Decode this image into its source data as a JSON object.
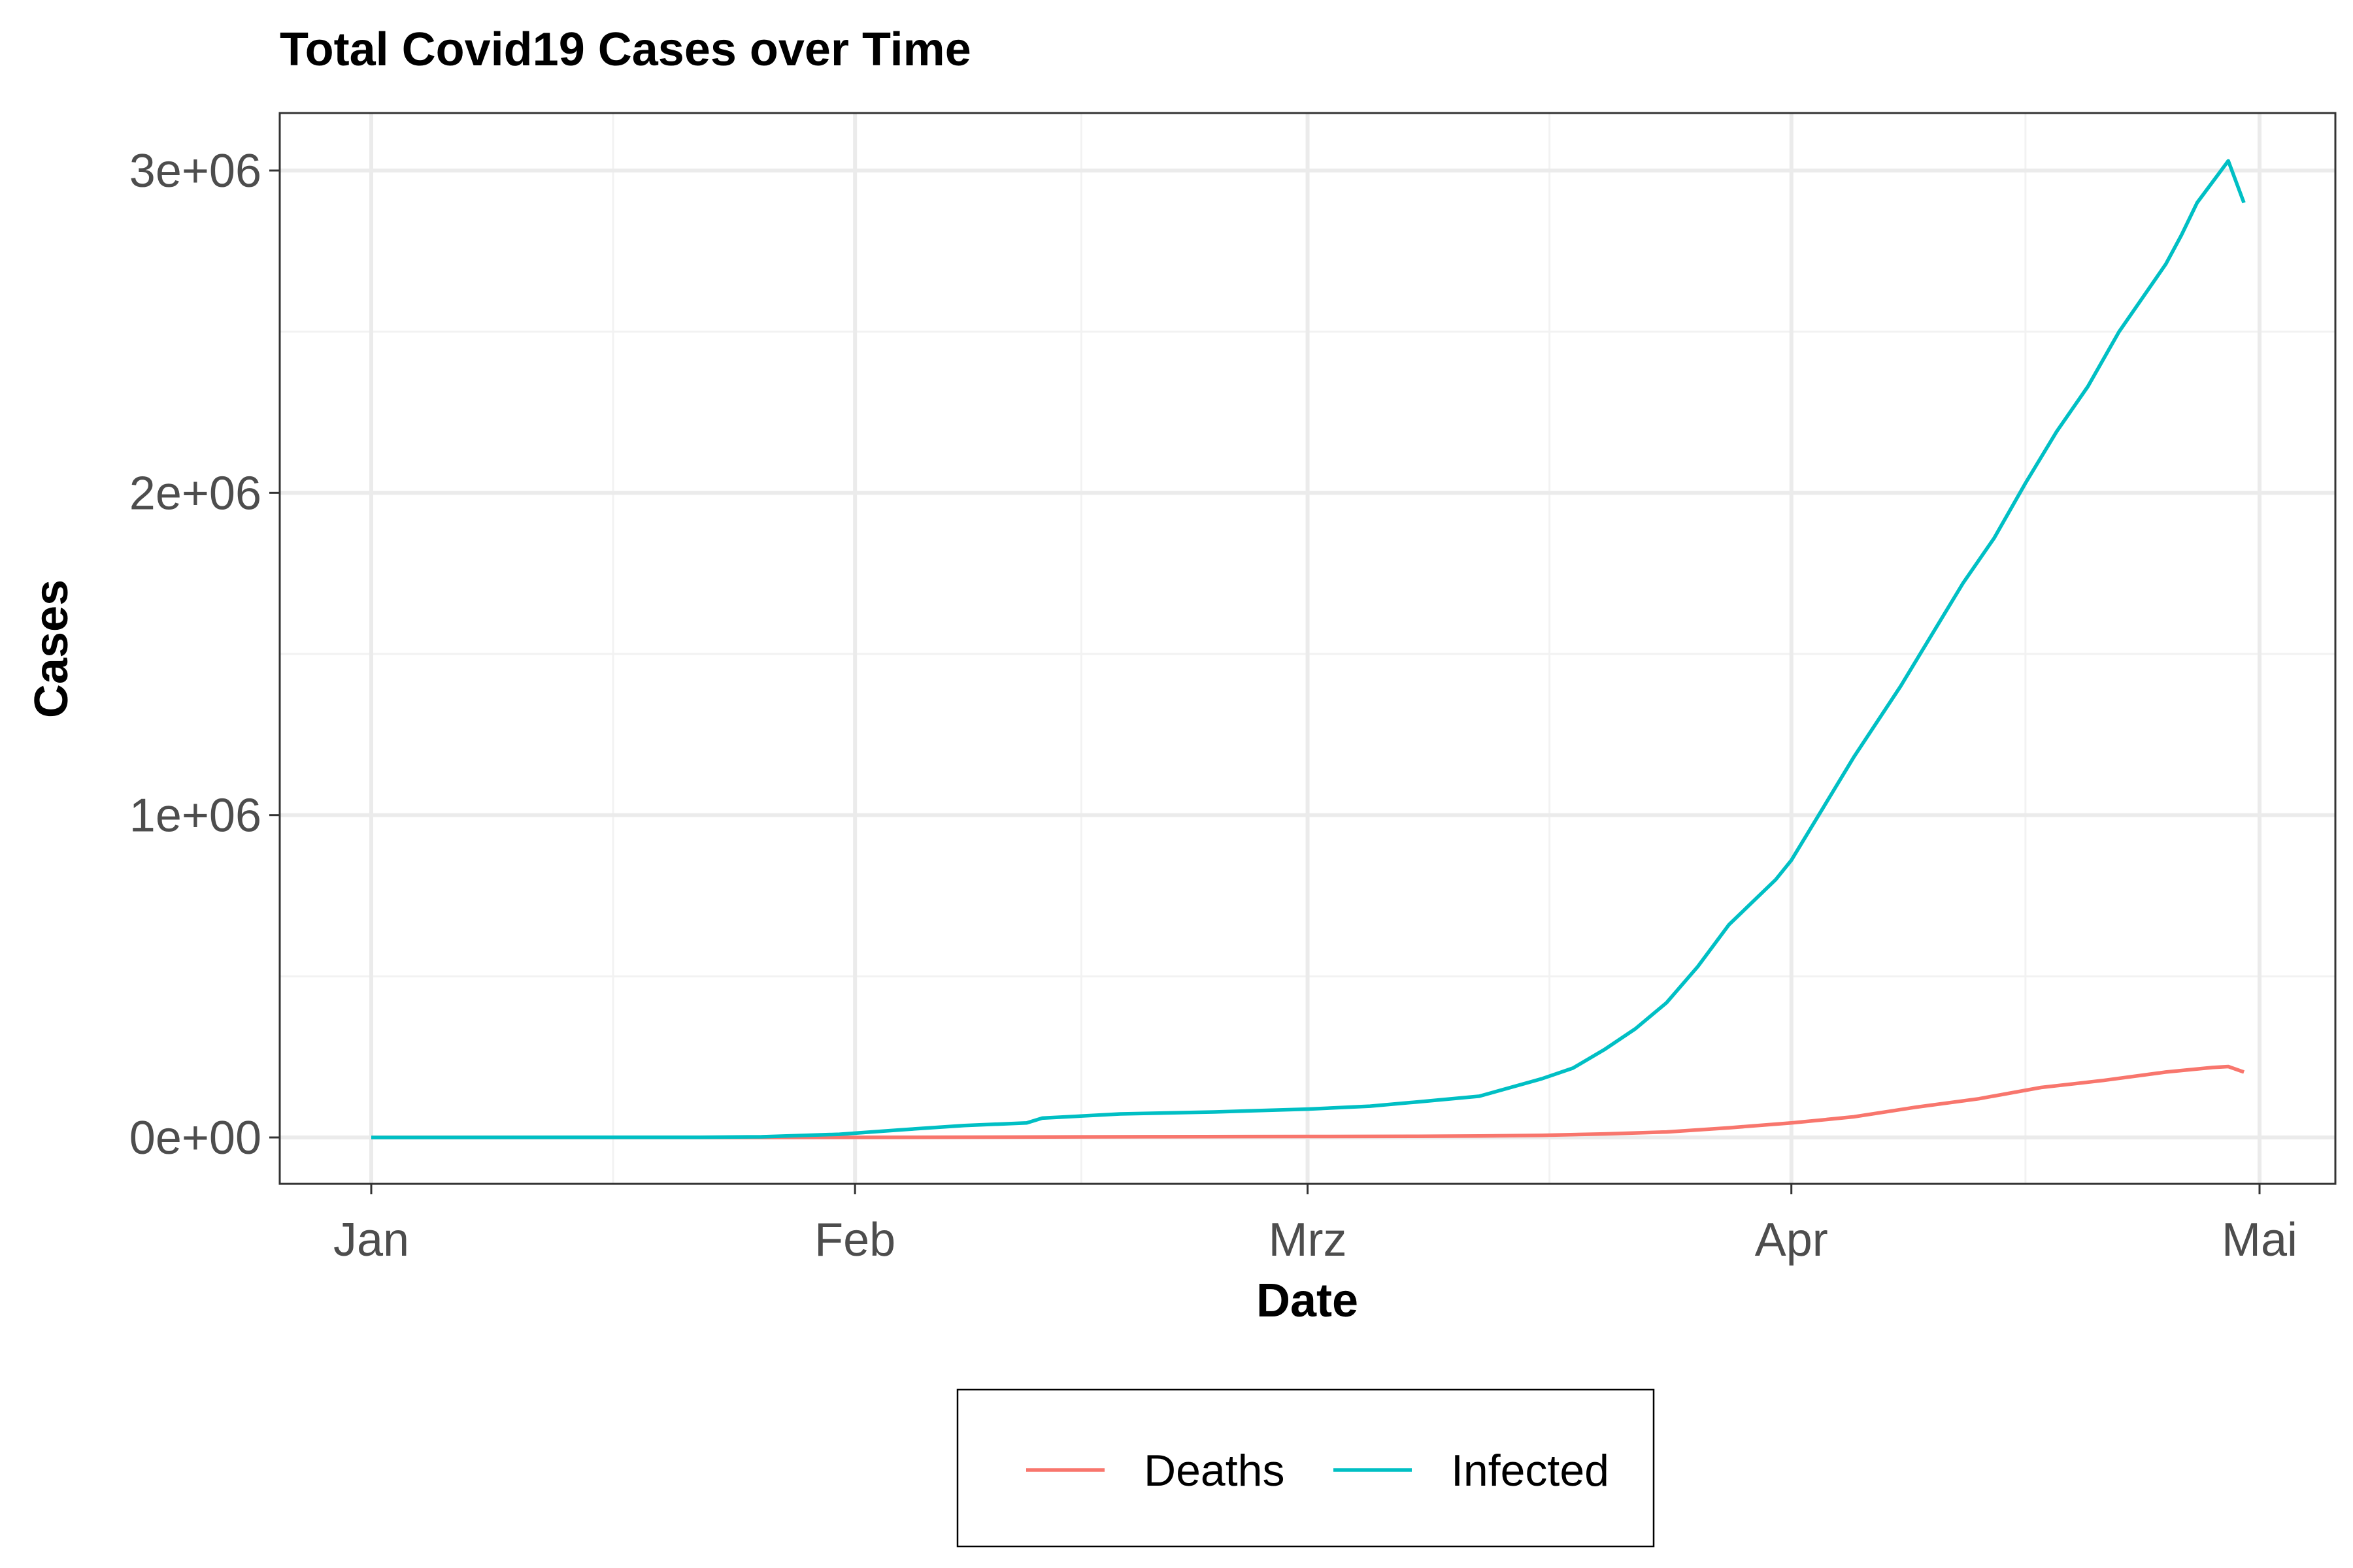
{
  "chart_data": {
    "type": "line",
    "title": "Total Covid19 Cases over Time",
    "xlabel": "Date",
    "ylabel": "Cases",
    "x_axis_type": "date",
    "x_range": [
      "2020-01-01",
      "2020-05-01"
    ],
    "x_ticks": [
      {
        "date": "2020-01-01",
        "label": "Jan"
      },
      {
        "date": "2020-02-01",
        "label": "Feb"
      },
      {
        "date": "2020-03-01",
        "label": "Mrz"
      },
      {
        "date": "2020-04-01",
        "label": "Apr"
      },
      {
        "date": "2020-05-01",
        "label": "Mai"
      }
    ],
    "ylim": [
      -150000,
      3150000
    ],
    "y_ticks": [
      {
        "value": 0,
        "label": "0e+00"
      },
      {
        "value": 1000000,
        "label": "1e+06"
      },
      {
        "value": 2000000,
        "label": "2e+06"
      },
      {
        "value": 3000000,
        "label": "3e+06"
      }
    ],
    "grid": true,
    "legend_position": "bottom",
    "series": [
      {
        "name": "Deaths",
        "color": "#F8766D",
        "points": [
          [
            "2020-01-01",
            0
          ],
          [
            "2020-01-23",
            18
          ],
          [
            "2020-01-31",
            213
          ],
          [
            "2020-02-10",
            1000
          ],
          [
            "2020-02-20",
            2200
          ],
          [
            "2020-03-01",
            3000
          ],
          [
            "2020-03-08",
            3600
          ],
          [
            "2020-03-12",
            4600
          ],
          [
            "2020-03-16",
            6500
          ],
          [
            "2020-03-20",
            11000
          ],
          [
            "2020-03-24",
            17000
          ],
          [
            "2020-03-28",
            30000
          ],
          [
            "2020-04-01",
            45000
          ],
          [
            "2020-04-05",
            64000
          ],
          [
            "2020-04-09",
            94000
          ],
          [
            "2020-04-13",
            120000
          ],
          [
            "2020-04-17",
            155000
          ],
          [
            "2020-04-21",
            177000
          ],
          [
            "2020-04-25",
            203000
          ],
          [
            "2020-04-28",
            217000
          ],
          [
            "2020-04-29",
            220000
          ],
          [
            "2020-04-30",
            203000
          ]
        ]
      },
      {
        "name": "Infected",
        "color": "#00BFC4",
        "points": [
          [
            "2020-01-01",
            0
          ],
          [
            "2020-01-22",
            555
          ],
          [
            "2020-01-26",
            2100
          ],
          [
            "2020-01-31",
            9900
          ],
          [
            "2020-02-04",
            24000
          ],
          [
            "2020-02-08",
            37000
          ],
          [
            "2020-02-12",
            45000
          ],
          [
            "2020-02-13",
            60000
          ],
          [
            "2020-02-18",
            73000
          ],
          [
            "2020-02-24",
            79000
          ],
          [
            "2020-03-01",
            88000
          ],
          [
            "2020-03-05",
            97000
          ],
          [
            "2020-03-08",
            110000
          ],
          [
            "2020-03-12",
            128000
          ],
          [
            "2020-03-16",
            182000
          ],
          [
            "2020-03-18",
            215000
          ],
          [
            "2020-03-20",
            272000
          ],
          [
            "2020-03-22",
            337000
          ],
          [
            "2020-03-24",
            418000
          ],
          [
            "2020-03-26",
            530000
          ],
          [
            "2020-03-28",
            660000
          ],
          [
            "2020-03-31",
            800000
          ],
          [
            "2020-04-01",
            860000
          ],
          [
            "2020-04-03",
            1020000
          ],
          [
            "2020-04-05",
            1180000
          ],
          [
            "2020-04-08",
            1400000
          ],
          [
            "2020-04-10",
            1560000
          ],
          [
            "2020-04-12",
            1720000
          ],
          [
            "2020-04-14",
            1860000
          ],
          [
            "2020-04-16",
            2030000
          ],
          [
            "2020-04-18",
            2190000
          ],
          [
            "2020-04-20",
            2330000
          ],
          [
            "2020-04-22",
            2500000
          ],
          [
            "2020-04-24",
            2640000
          ],
          [
            "2020-04-25",
            2710000
          ],
          [
            "2020-04-26",
            2800000
          ],
          [
            "2020-04-27",
            2900000
          ],
          [
            "2020-04-29",
            3030000
          ],
          [
            "2020-04-30",
            2900000
          ]
        ]
      }
    ]
  }
}
